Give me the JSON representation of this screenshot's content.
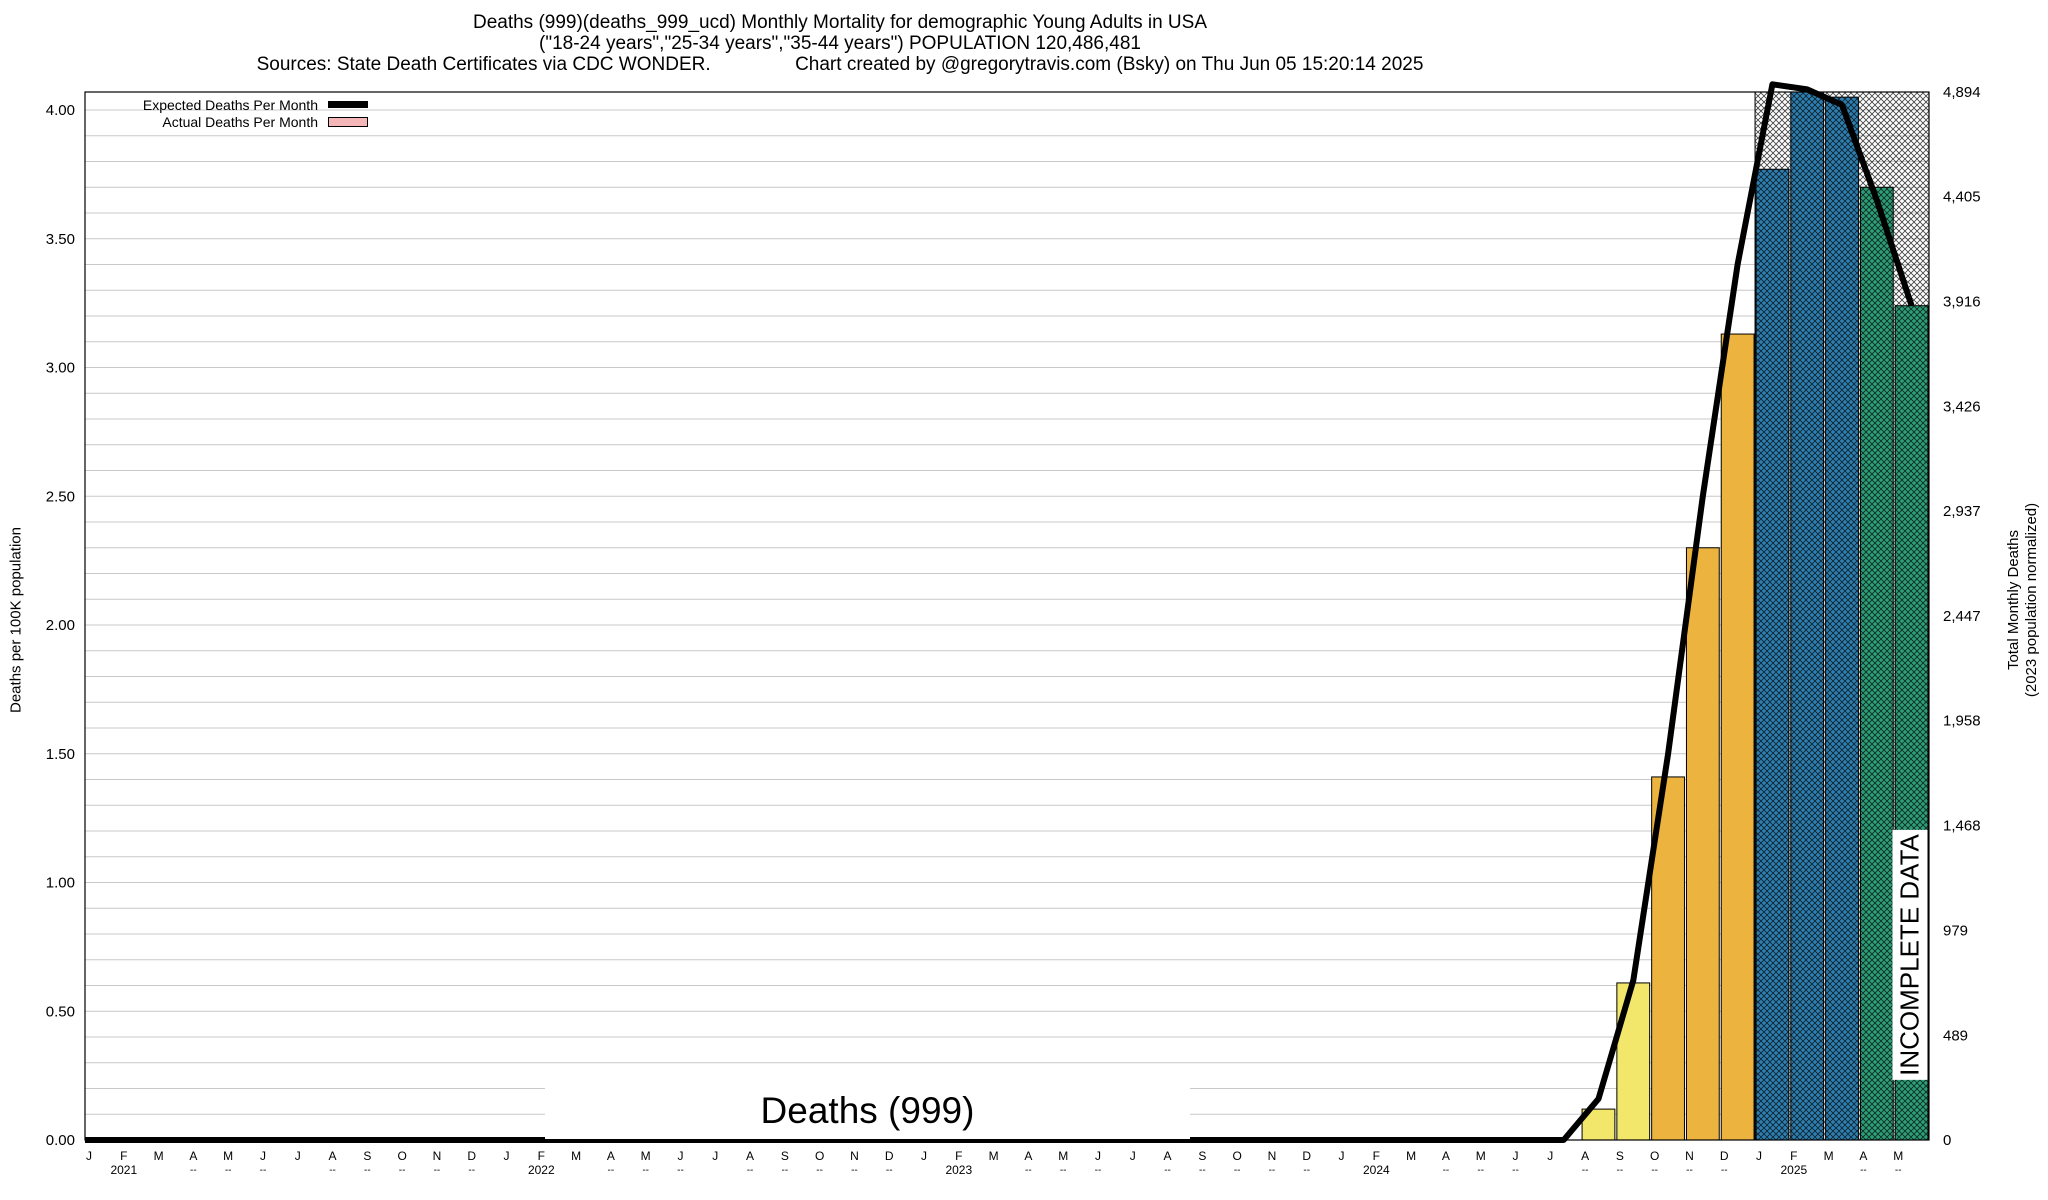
{
  "header": {
    "title_line1": "Deaths (999)(deaths_999_ucd) Monthly Mortality for demographic Young Adults in USA",
    "title_line2": "(\"18-24 years\",\"25-34 years\",\"35-44 years\") POPULATION 120,486,481",
    "title_line3": "Sources: State Death Certificates via CDC WONDER.                Chart created by @gregorytravis.com (Bsky) on Thu Jun 05 15:20:14 2025"
  },
  "axes": {
    "ylabel_left": "Deaths per 100K population",
    "ylabel_right_line1": "Total Monthly Deaths",
    "ylabel_right_line2": "(2023 population normalized)"
  },
  "legend": {
    "expected_label": "Expected Deaths Per Month",
    "actual_label": "Actual Deaths Per Month"
  },
  "watermark": "Deaths (999)",
  "incomplete_label": "INCOMPLETE DATA",
  "colors": {
    "bar_yellow": "#f2e76a",
    "bar_orange": "#ecb43e",
    "bar_blue": "#2e7fb0",
    "bar_green": "#2e9e78",
    "legend_actual": "#f4b6b6",
    "grid": "#c8c8c8"
  },
  "chart_data": {
    "type": "bar",
    "ylim": [
      0,
      4.07
    ],
    "y_ticks": [
      "0.00",
      "0.50",
      "1.00",
      "1.50",
      "2.00",
      "2.50",
      "3.00",
      "3.50",
      "4.00"
    ],
    "right_ticks": [
      "0",
      "489",
      "979",
      "1,468",
      "1,958",
      "2,447",
      "2,937",
      "3,426",
      "3,916",
      "4,405",
      "4,894"
    ],
    "grid": true,
    "legend_position": "top-left",
    "month_labels": [
      "J",
      "F",
      "M",
      "A",
      "M",
      "J",
      "J",
      "A",
      "S",
      "O",
      "N",
      "D",
      "J",
      "F",
      "M",
      "A",
      "M",
      "J",
      "J",
      "A",
      "S",
      "O",
      "N",
      "D",
      "J",
      "F",
      "M",
      "A",
      "M",
      "J",
      "J",
      "A",
      "S",
      "O",
      "N",
      "D",
      "J",
      "F",
      "M",
      "A",
      "M",
      "J",
      "J",
      "A",
      "S",
      "O",
      "N",
      "D",
      "J",
      "F",
      "M",
      "A",
      "M"
    ],
    "year_labels": [
      {
        "month_index": 1,
        "label": "2021"
      },
      {
        "month_index": 13,
        "label": "2022"
      },
      {
        "month_index": 25,
        "label": "2023"
      },
      {
        "month_index": 37,
        "label": "2024"
      },
      {
        "month_index": 49,
        "label": "2025"
      }
    ],
    "dash_months": [
      3,
      4,
      5,
      7,
      8,
      9,
      10,
      11,
      15,
      16,
      17,
      19,
      20,
      21,
      22,
      23,
      27,
      28,
      29,
      31,
      32,
      33,
      34,
      35,
      39,
      40,
      41,
      43,
      44,
      45,
      46,
      47,
      51,
      52
    ],
    "series": [
      {
        "name": "Actual Deaths Per Month",
        "values": [
          0,
          0,
          0,
          0,
          0,
          0,
          0,
          0,
          0,
          0,
          0,
          0,
          0,
          0,
          0,
          0,
          0,
          0,
          0,
          0,
          0,
          0,
          0,
          0,
          0,
          0,
          0,
          0,
          0,
          0,
          0,
          0,
          0,
          0,
          0,
          0,
          0,
          0,
          0,
          0,
          0,
          0,
          0,
          0.12,
          0.61,
          1.41,
          2.3,
          3.13,
          3.77,
          4.08,
          4.05,
          3.7,
          3.24
        ],
        "colors_by_index": {
          "43": "yellow",
          "44": "yellow",
          "45": "orange",
          "46": "orange",
          "47": "orange",
          "48": "blue",
          "49": "blue",
          "50": "blue",
          "51": "green",
          "52": "green"
        }
      },
      {
        "name": "Expected Deaths Per Month",
        "values": [
          0,
          0,
          0,
          0,
          0,
          0,
          0,
          0,
          0,
          0,
          0,
          0,
          0,
          0,
          0,
          0,
          0,
          0,
          0,
          0,
          0,
          0,
          0,
          0,
          0,
          0,
          0,
          0,
          0,
          0,
          0,
          0,
          0,
          0,
          0,
          0,
          0,
          0,
          0,
          0,
          0,
          0,
          0.0,
          0.16,
          0.62,
          1.5,
          2.5,
          3.4,
          4.1,
          4.08,
          4.02,
          3.65,
          3.24
        ]
      }
    ],
    "incomplete_from_index": 48,
    "incomplete_expected_top": 4.07
  }
}
